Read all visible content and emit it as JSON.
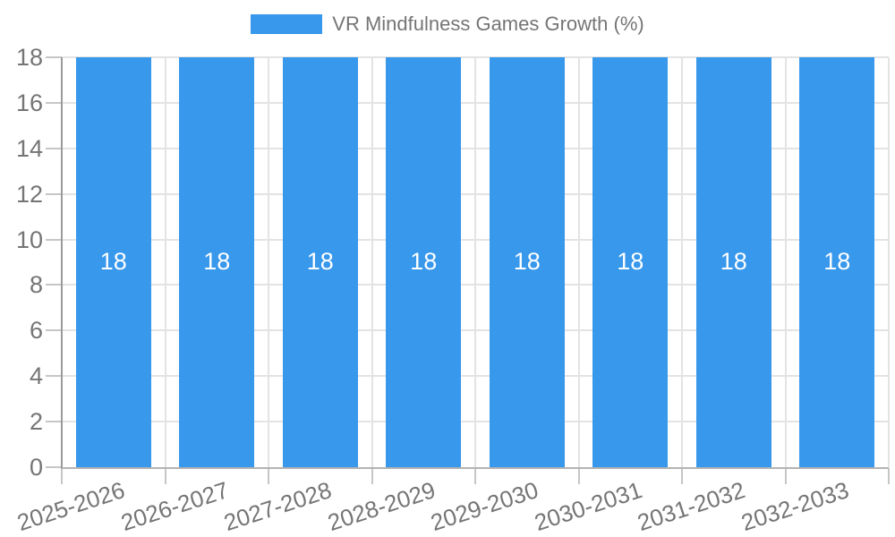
{
  "legend": {
    "series_label": "VR Mindfulness Games Growth (%)"
  },
  "colors": {
    "bar": "#3898ec",
    "bar_value_text": "#ffffff",
    "grid": "#e3e3e3",
    "y_axis_line": "#9a9a9a",
    "x_axis_line": "#b3b3b3",
    "tick": "#c6c6c6",
    "tick_label_text": "#757575",
    "legend_text": "#757575"
  },
  "chart_data": {
    "type": "bar",
    "title": "VR Mindfulness Games Growth (%)",
    "categories": [
      "2025-2026",
      "2026-2027",
      "2027-2028",
      "2028-2029",
      "2029-2030",
      "2030-2031",
      "2031-2032",
      "2032-2033"
    ],
    "series": [
      {
        "name": "VR Mindfulness Games Growth (%)",
        "values": [
          18,
          18,
          18,
          18,
          18,
          18,
          18,
          18
        ]
      }
    ],
    "values": [
      18,
      18,
      18,
      18,
      18,
      18,
      18,
      18
    ],
    "bar_value_labels": [
      "18",
      "18",
      "18",
      "18",
      "18",
      "18",
      "18",
      "18"
    ],
    "xlabel": "",
    "ylabel": "",
    "ylim": [
      0,
      18
    ],
    "y_ticks": [
      0,
      2,
      4,
      6,
      8,
      10,
      12,
      14,
      16,
      18
    ],
    "grid": true,
    "legend_position": "top-center"
  }
}
